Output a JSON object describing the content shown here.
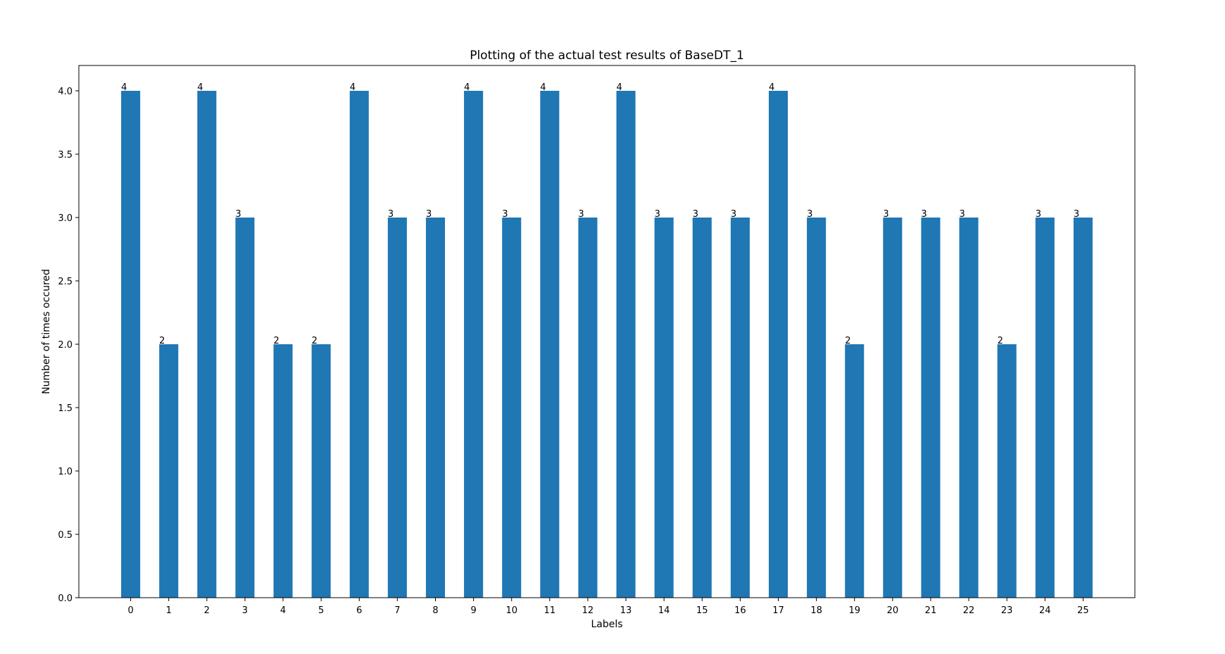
{
  "chart_data": {
    "type": "bar",
    "title": "Plotting of the actual test results of BaseDT_1",
    "xlabel": "Labels",
    "ylabel": "Number of times occured",
    "categories": [
      "0",
      "1",
      "2",
      "3",
      "4",
      "5",
      "6",
      "7",
      "8",
      "9",
      "10",
      "11",
      "12",
      "13",
      "14",
      "15",
      "16",
      "17",
      "18",
      "19",
      "20",
      "21",
      "22",
      "23",
      "24",
      "25"
    ],
    "values": [
      4,
      2,
      4,
      3,
      2,
      2,
      4,
      3,
      3,
      4,
      3,
      4,
      3,
      4,
      3,
      3,
      3,
      4,
      3,
      2,
      3,
      3,
      3,
      2,
      3,
      3
    ],
    "data_labels": [
      "4",
      "2",
      "4",
      "3",
      "2",
      "2",
      "4",
      "3",
      "3",
      "4",
      "3",
      "4",
      "3",
      "4",
      "3",
      "3",
      "3",
      "4",
      "3",
      "2",
      "3",
      "3",
      "3",
      "2",
      "3",
      "3"
    ],
    "ylim": [
      0,
      4.2
    ],
    "yticks": [
      0.0,
      0.5,
      1.0,
      1.5,
      2.0,
      2.5,
      3.0,
      3.5,
      4.0
    ],
    "ytick_labels": [
      "0.0",
      "0.5",
      "1.0",
      "1.5",
      "2.0",
      "2.5",
      "3.0",
      "3.5",
      "4.0"
    ],
    "grid": false,
    "bar_color": "#1f77b4"
  }
}
